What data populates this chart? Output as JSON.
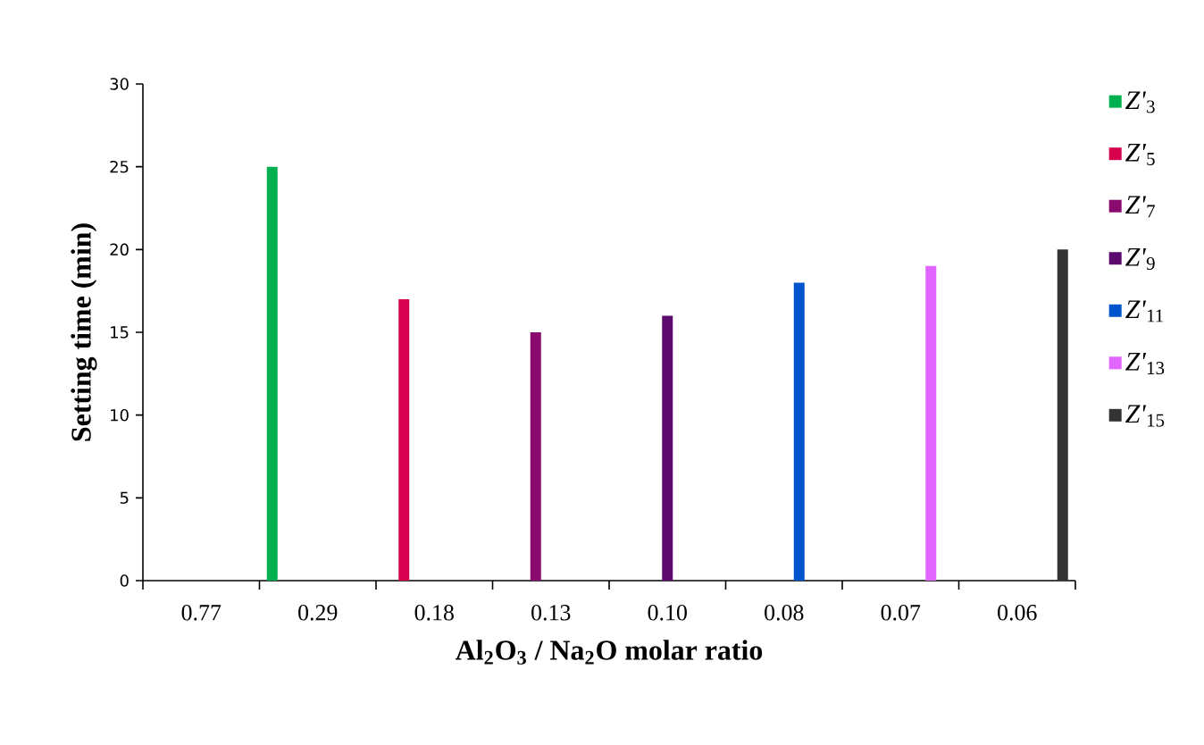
{
  "chart_data": {
    "type": "bar",
    "xlabel": "Al$_{2}$O$_{3}$ / Na$_{2}$O   molar ratio",
    "ylabel": "Setting time (min)",
    "categories": [
      "0.77",
      "0.29",
      "0.18",
      "0.13",
      "0.10",
      "0.08",
      "0.07",
      "0.06"
    ],
    "series": [
      {
        "name": "*Z'*$_{3}$",
        "color": "#00b050",
        "values": [
          null,
          25,
          null,
          null,
          null,
          null,
          null,
          null
        ]
      },
      {
        "name": "*Z'*$_{5}$",
        "color": "#d6004f",
        "values": [
          null,
          null,
          17,
          null,
          null,
          null,
          null,
          null
        ]
      },
      {
        "name": "*Z'*$_{7}$",
        "color": "#8b0a6e",
        "values": [
          null,
          null,
          null,
          15,
          null,
          null,
          null,
          null
        ]
      },
      {
        "name": "*Z'*$_{9}$",
        "color": "#5c0a6e",
        "values": [
          null,
          null,
          null,
          null,
          16,
          null,
          null,
          null
        ]
      },
      {
        "name": "*Z'*$_{11}$",
        "color": "#0055cc",
        "values": [
          null,
          null,
          null,
          null,
          null,
          18,
          null,
          null
        ]
      },
      {
        "name": "*Z'*$_{13}$",
        "color": "#e066ff",
        "values": [
          null,
          null,
          null,
          null,
          null,
          null,
          19,
          null
        ]
      },
      {
        "name": "*Z'*$_{15}$",
        "color": "#333333",
        "values": [
          null,
          null,
          null,
          null,
          null,
          null,
          null,
          20
        ]
      }
    ],
    "ylim": [
      0,
      30
    ],
    "yticks": [
      0,
      5,
      10,
      15,
      20,
      25,
      30
    ],
    "grid": false,
    "legend": "right"
  }
}
